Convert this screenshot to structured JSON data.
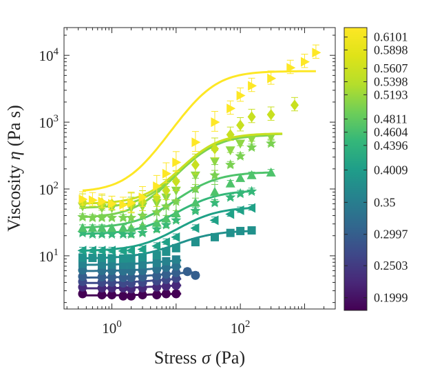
{
  "chart_data": {
    "type": "scatter",
    "xlabel_text": "Stress",
    "xlabel_symbol": "σ",
    "xlabel_unit": "(Pa)",
    "ylabel_text": "Viscosity",
    "ylabel_symbol": "η",
    "ylabel_unit": "(Pa s)",
    "x_scale": "log",
    "y_scale": "log",
    "xlim": [
      0.18,
      3000
    ],
    "ylim": [
      1.6,
      26000
    ],
    "grid": false,
    "x_ticks": [
      {
        "value": 1,
        "base": "10",
        "exp": "0"
      },
      {
        "value": 100,
        "base": "10",
        "exp": "2"
      }
    ],
    "y_ticks": [
      {
        "value": 10,
        "base": "10",
        "exp": "1"
      },
      {
        "value": 100,
        "base": "10",
        "exp": "2"
      },
      {
        "value": 1000,
        "base": "10",
        "exp": "3"
      },
      {
        "value": 10000,
        "base": "10",
        "exp": "4"
      }
    ],
    "colorbar": {
      "colormap": "viridis",
      "min": 0.18,
      "max": 0.625,
      "ticks": [
        {
          "value": 0.1999,
          "label": "0.1999"
        },
        {
          "value": 0.2503,
          "label": "0.2503"
        },
        {
          "value": 0.2997,
          "label": "0.2997"
        },
        {
          "value": 0.35,
          "label": "0.35"
        },
        {
          "value": 0.4009,
          "label": "0.4009"
        },
        {
          "value": 0.4396,
          "label": "0.4396"
        },
        {
          "value": 0.4604,
          "label": "0.4604"
        },
        {
          "value": 0.4811,
          "label": "0.4811"
        },
        {
          "value": 0.5193,
          "label": "0.5193"
        },
        {
          "value": 0.5398,
          "label": "0.5398"
        },
        {
          "value": 0.5607,
          "label": "0.5607"
        },
        {
          "value": 0.5898,
          "label": "0.5898"
        },
        {
          "value": 0.6101,
          "label": "0.6101"
        }
      ]
    },
    "series": [
      {
        "phi": 0.1999,
        "color": "#440154",
        "marker": "circle",
        "x": [
          0.35,
          0.7,
          1,
          1.5,
          2,
          3,
          5,
          7,
          10
        ],
        "y": [
          2.7,
          2.6,
          2.6,
          2.5,
          2.5,
          2.6,
          2.6,
          2.7,
          2.7
        ],
        "fit": {
          "eta0": 2.55,
          "etainf": 2.75,
          "sigc": 5,
          "n": 1.5,
          "xmin": 0.35,
          "xmax": 12
        }
      },
      {
        "phi": 0.2251,
        "color": "#472a7a",
        "marker": "circle",
        "x": [
          0.35,
          0.7,
          1,
          1.5,
          2,
          3,
          5,
          7,
          10
        ],
        "y": [
          3.4,
          3.3,
          3.3,
          3.3,
          3.2,
          3.3,
          3.4,
          3.5,
          3.6
        ],
        "fit": {
          "eta0": 3.25,
          "etainf": 3.7,
          "sigc": 5,
          "n": 1.5,
          "xmin": 0.35,
          "xmax": 12
        }
      },
      {
        "phi": 0.2503,
        "color": "#3e4989",
        "marker": "circle",
        "x": [
          0.35,
          0.7,
          1,
          1.5,
          2,
          3,
          5,
          7,
          10
        ],
        "y": [
          4.1,
          4.0,
          4.0,
          3.9,
          3.9,
          4.0,
          4.2,
          4.4,
          4.6
        ],
        "fit": {
          "eta0": 3.9,
          "etainf": 4.7,
          "sigc": 5,
          "n": 1.5,
          "xmin": 0.35,
          "xmax": 12
        }
      },
      {
        "phi": 0.275,
        "color": "#355f8d",
        "marker": "circle",
        "x": [
          0.35,
          0.7,
          1,
          1.5,
          2,
          3,
          5,
          7,
          10,
          15,
          20
        ],
        "y": [
          4.9,
          4.8,
          4.8,
          4.7,
          4.7,
          4.8,
          5.0,
          5.3,
          5.6,
          5.8,
          5.1
        ],
        "fit": {
          "eta0": 4.7,
          "etainf": 5.8,
          "sigc": 6,
          "n": 1.5,
          "xmin": 0.35,
          "xmax": 20
        }
      },
      {
        "phi": 0.2997,
        "color": "#2c728e",
        "marker": "circle",
        "x": [
          0.35,
          0.7,
          1,
          1.5,
          2,
          3,
          5,
          7,
          10
        ],
        "y": [
          6.1,
          6.0,
          6.0,
          5.9,
          5.9,
          6.0,
          6.3,
          6.7,
          7.0
        ],
        "fit": {
          "eta0": 5.9,
          "etainf": 7.2,
          "sigc": 6,
          "n": 1.5,
          "xmin": 0.35,
          "xmax": 12
        }
      },
      {
        "phi": 0.325,
        "color": "#26828e",
        "marker": "square",
        "x": [
          0.35,
          0.7,
          1,
          1.5,
          2,
          3,
          5,
          7,
          10
        ],
        "y": [
          7.6,
          7.4,
          7.4,
          7.3,
          7.3,
          7.4,
          7.8,
          8.3,
          8.8
        ],
        "fit": {
          "eta0": 7.3,
          "etainf": 9.0,
          "sigc": 6,
          "n": 1.5,
          "xmin": 0.35,
          "xmax": 12
        }
      },
      {
        "phi": 0.35,
        "color": "#21918c",
        "marker": "square",
        "x": [
          0.35,
          0.5,
          0.7,
          1,
          1.5,
          2,
          3,
          5,
          7,
          10,
          20,
          40,
          70,
          100,
          150
        ],
        "y": [
          9.4,
          9.3,
          9.3,
          9.2,
          9.1,
          9.2,
          9.5,
          10.2,
          11.5,
          13,
          16,
          19,
          22,
          23.5,
          24
        ],
        "fit": {
          "eta0": 9.1,
          "etainf": 24,
          "sigc": 14,
          "n": 1.4,
          "xmin": 0.35,
          "xmax": 150
        }
      },
      {
        "phi": 0.4009,
        "color": "#1fa187",
        "marker": "ltriangle",
        "x": [
          0.35,
          0.5,
          0.7,
          1,
          1.5,
          2,
          3,
          5,
          7,
          10,
          20,
          40,
          70,
          100,
          150
        ],
        "y": [
          12,
          12,
          12,
          12,
          11.8,
          12,
          12.5,
          14,
          16,
          19,
          26,
          34,
          42,
          48,
          52
        ],
        "fit": {
          "eta0": 11.8,
          "etainf": 54,
          "sigc": 18,
          "n": 1.4,
          "xmin": 0.35,
          "xmax": 150
        }
      },
      {
        "phi": 0.4396,
        "color": "#35b779",
        "marker": "star",
        "x": [
          0.35,
          0.5,
          0.7,
          1,
          1.5,
          2,
          3,
          5,
          7,
          10,
          20,
          40,
          70,
          100,
          150
        ],
        "y": [
          22,
          21,
          21,
          21,
          21,
          21,
          22,
          25,
          29,
          34,
          47,
          62,
          75,
          85,
          92
        ],
        "fit": {
          "eta0": 21,
          "etainf": 96,
          "sigc": 18,
          "n": 1.4,
          "xmin": 0.35,
          "xmax": 150
        }
      },
      {
        "phi": 0.4604,
        "color": "#4ec36b",
        "marker": "triangle",
        "x": [
          0.35,
          0.5,
          0.7,
          1,
          1.5,
          2,
          3,
          5,
          7,
          10,
          20,
          40,
          70,
          100,
          150,
          300
        ],
        "y": [
          26,
          26,
          26,
          26,
          26,
          26,
          28,
          31,
          36,
          43,
          62,
          90,
          120,
          145,
          160,
          175
        ],
        "fit": {
          "eta0": 26,
          "etainf": 180,
          "sigc": 20,
          "n": 1.4,
          "xmin": 0.35,
          "xmax": 300
        }
      },
      {
        "phi": 0.4811,
        "color": "#7ad151",
        "marker": "star",
        "x": [
          0.35,
          0.5,
          0.7,
          1,
          1.5,
          2,
          3,
          5,
          7,
          10,
          20,
          40,
          70,
          100,
          150,
          300
        ],
        "y": [
          38,
          37,
          37,
          37,
          37,
          37,
          40,
          45,
          55,
          65,
          100,
          160,
          230,
          310,
          420,
          480
        ],
        "fit": {
          "eta0": 37,
          "etainf": 650,
          "sigc": 25,
          "n": 1.5,
          "xmin": 0.35,
          "xmax": 300
        }
      },
      {
        "phi": 0.5193,
        "color": "#8fd744",
        "marker": "dtriangle",
        "x": [
          0.35,
          0.7,
          1,
          2,
          3,
          5,
          7,
          10,
          20,
          40,
          70,
          100,
          150,
          300
        ],
        "y": [
          55,
          52,
          52,
          52,
          55,
          62,
          75,
          95,
          160,
          260,
          380,
          480,
          560,
          600
        ],
        "fit": {
          "eta0": 52,
          "etainf": 670,
          "sigc": 25,
          "n": 1.6,
          "xmin": 0.35,
          "xmax": 450
        }
      },
      {
        "phi": 0.5607,
        "color": "#c8e020",
        "marker": "diamond",
        "x": [
          0.35,
          0.7,
          1,
          2,
          3,
          5,
          7,
          10,
          20,
          40,
          70,
          100,
          150,
          300,
          700
        ],
        "y": [
          65,
          62,
          60,
          60,
          65,
          75,
          95,
          130,
          230,
          400,
          650,
          900,
          1200,
          1300,
          1800
        ],
        "fit": {
          "eta0": 60,
          "etainf": 680,
          "sigc": 25,
          "n": 1.6,
          "xmin": 0.35,
          "xmax": 450
        }
      },
      {
        "phi": 0.6101,
        "color": "#fde725",
        "marker": "rtriangle",
        "x": [
          0.35,
          0.5,
          0.7,
          1,
          1.5,
          2,
          3,
          5,
          7,
          10,
          20,
          40,
          70,
          100,
          150,
          300,
          600,
          1000,
          1500
        ],
        "y": [
          70,
          68,
          65,
          60,
          58,
          62,
          75,
          110,
          170,
          250,
          500,
          1000,
          1600,
          2500,
          3500,
          4500,
          6500,
          8000,
          11000
        ],
        "fit": {
          "eta0": 90,
          "etainf": 5800,
          "sigc": 30,
          "n": 1.6,
          "xmin": 0.35,
          "xmax": 1500
        }
      }
    ]
  }
}
